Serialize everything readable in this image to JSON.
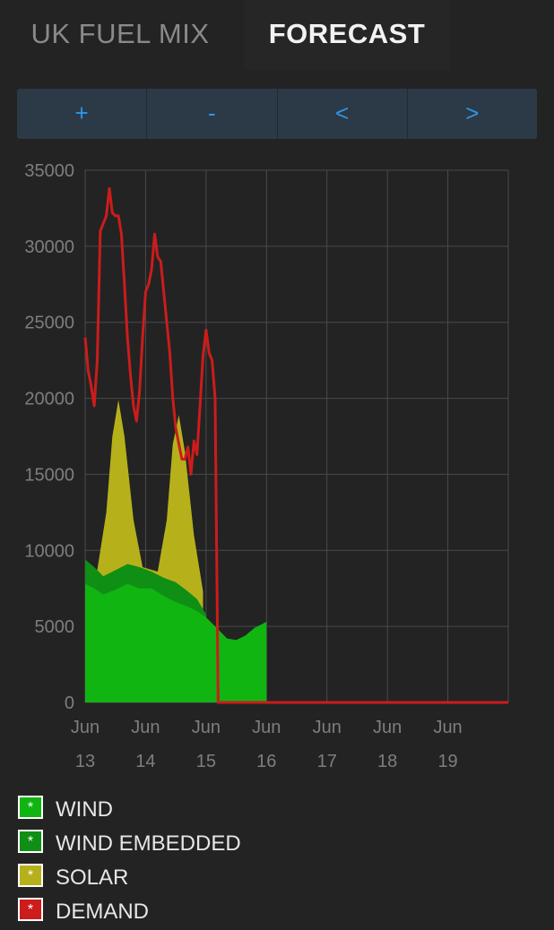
{
  "tabs": [
    {
      "label": "UK FUEL MIX",
      "active": false
    },
    {
      "label": "FORECAST",
      "active": true
    }
  ],
  "toolbar": {
    "zoom_in_label": "+",
    "zoom_out_label": "-",
    "prev_label": "<",
    "next_label": ">"
  },
  "chart_data": {
    "type": "area",
    "x_ticks": [
      {
        "month": "Jun",
        "day": "13"
      },
      {
        "month": "Jun",
        "day": "14"
      },
      {
        "month": "Jun",
        "day": "15"
      },
      {
        "month": "Jun",
        "day": "16"
      },
      {
        "month": "Jun",
        "day": "17"
      },
      {
        "month": "Jun",
        "day": "18"
      },
      {
        "month": "Jun",
        "day": "19"
      }
    ],
    "xlim": [
      13,
      20
    ],
    "ylim": [
      0,
      35000
    ],
    "yticks": [
      0,
      5000,
      10000,
      15000,
      20000,
      25000,
      30000,
      35000
    ],
    "grid": true,
    "legend_position": "bottom",
    "series": [
      {
        "name": "WIND",
        "kind": "area",
        "color": "#11b512",
        "x": [
          13.0,
          13.15,
          13.3,
          13.5,
          13.7,
          13.9,
          14.1,
          14.3,
          14.5,
          14.7,
          14.85,
          15.0,
          15.2,
          15.35,
          15.5,
          15.65,
          15.8,
          15.95,
          16.0
        ],
        "values": [
          7800,
          7500,
          7100,
          7400,
          7800,
          7500,
          7500,
          7000,
          6600,
          6300,
          6000,
          5600,
          4800,
          4200,
          4100,
          4400,
          4900,
          5200,
          5300
        ]
      },
      {
        "name": "WIND EMBEDDED",
        "kind": "area",
        "color": "#0f8f14",
        "x": [
          13.0,
          13.15,
          13.3,
          13.5,
          13.7,
          13.9,
          14.1,
          14.3,
          14.5,
          14.7,
          14.85,
          15.0
        ],
        "values": [
          9400,
          8900,
          8300,
          8700,
          9100,
          8900,
          8600,
          8200,
          7900,
          7300,
          6800,
          5800
        ]
      },
      {
        "name": "SOLAR",
        "kind": "area",
        "color": "#b6b11b",
        "x": [
          13.2,
          13.35,
          13.45,
          13.55,
          13.65,
          13.8,
          13.95,
          14.2,
          14.35,
          14.45,
          14.55,
          14.65,
          14.8,
          14.95
        ],
        "values": [
          8700,
          12500,
          17500,
          19900,
          17500,
          12000,
          8900,
          8600,
          12000,
          17000,
          18900,
          16500,
          11000,
          7300
        ]
      },
      {
        "name": "DEMAND",
        "kind": "line",
        "color": "#cc1c1c",
        "x": [
          13.0,
          13.05,
          13.1,
          13.15,
          13.2,
          13.25,
          13.3,
          13.35,
          13.4,
          13.45,
          13.5,
          13.55,
          13.6,
          13.65,
          13.7,
          13.75,
          13.8,
          13.85,
          13.9,
          13.95,
          14.0,
          14.05,
          14.1,
          14.15,
          14.2,
          14.25,
          14.3,
          14.35,
          14.4,
          14.45,
          14.5,
          14.55,
          14.6,
          14.65,
          14.7,
          14.75,
          14.8,
          14.85,
          14.9,
          14.95,
          15.0,
          15.05,
          15.1,
          15.15,
          15.2,
          15.25,
          15.3,
          15.35,
          15.4,
          15.45,
          15.5,
          15.55,
          15.6,
          15.65,
          15.7,
          15.75,
          15.8,
          15.85,
          15.9,
          15.95,
          16.0,
          16.01,
          16.1,
          16.5,
          17.0,
          18.0,
          19.0,
          20.0
        ],
        "values": [
          24000,
          21800,
          20800,
          19500,
          22500,
          31000,
          31500,
          32000,
          33800,
          32200,
          32000,
          32000,
          30800,
          27500,
          24000,
          21500,
          19500,
          18500,
          20500,
          24000,
          27000,
          27500,
          28500,
          30800,
          29300,
          29000,
          27000,
          25000,
          23000,
          20000,
          18000,
          17000,
          16000,
          16000,
          16800,
          15000,
          17200,
          16300,
          19500,
          22800,
          24500,
          23000,
          22500,
          20000,
          0,
          0,
          0,
          0,
          0,
          0,
          0,
          0,
          0,
          0,
          0,
          0,
          0,
          0,
          0,
          0,
          0,
          0,
          0,
          0,
          0,
          0,
          0,
          0
        ]
      }
    ]
  }
}
